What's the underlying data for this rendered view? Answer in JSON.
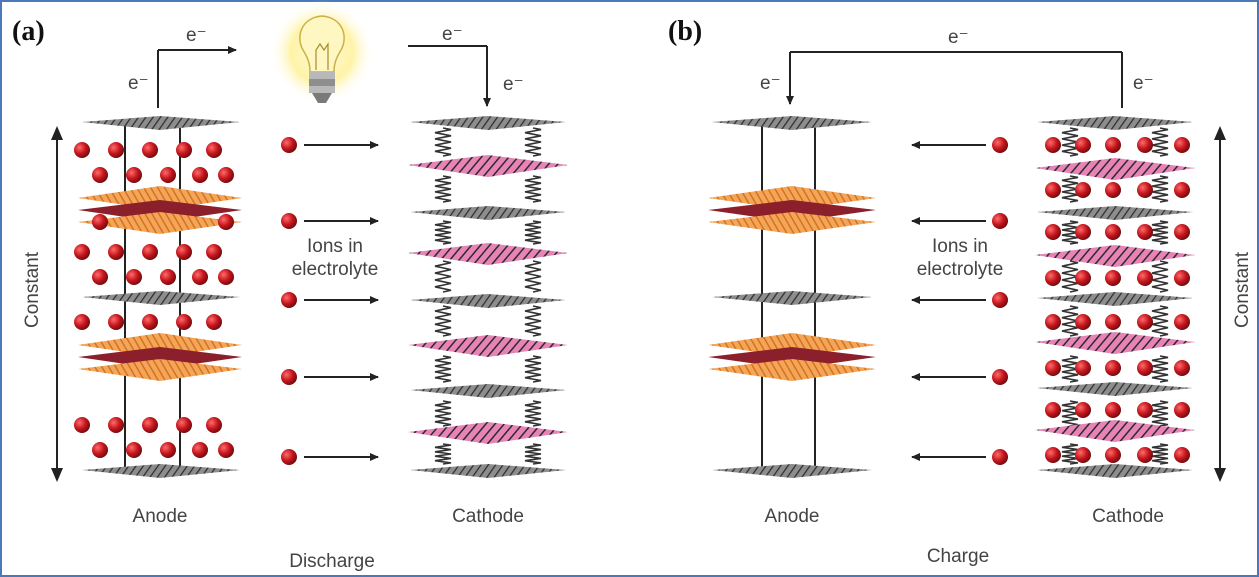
{
  "panel_a": {
    "tag": "(a)",
    "electron_left": "e⁻",
    "electron_top_left": "e⁻",
    "electron_top_right": "e⁻",
    "electron_right": "e⁻",
    "ions_line1": "Ions in",
    "ions_line2": "electrolyte",
    "anode": "Anode",
    "cathode": "Cathode",
    "process": "Discharge",
    "side_label": "Constant"
  },
  "panel_b": {
    "tag": "(b)",
    "electron_top": "e⁻",
    "electron_left": "e⁻",
    "electron_right": "e⁻",
    "ions_line1": "Ions in",
    "ions_line2": "electrolyte",
    "anode": "Anode",
    "cathode": "Cathode",
    "process": "Charge",
    "side_label": "Constant"
  },
  "colors": {
    "frame": "#4a78b8",
    "graphene": "#3a3a3a",
    "orange_layer": "#e8892f",
    "maroon_layer": "#8b1f2c",
    "pink_layer": "#d9559a",
    "ion": "#c4161c",
    "arrow": "#222222",
    "bulb_glow": "#fff3a8"
  }
}
